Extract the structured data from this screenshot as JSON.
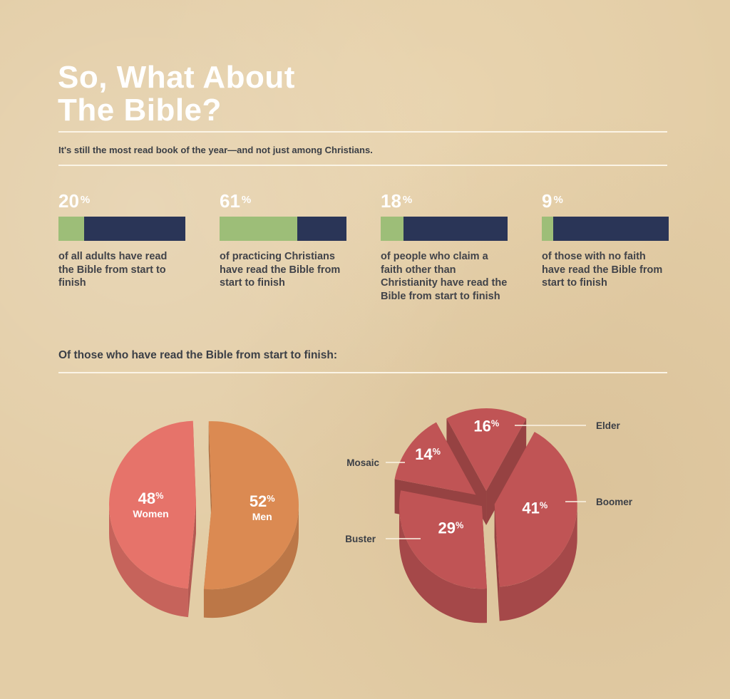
{
  "title": {
    "line1": "So, What About",
    "line2": "The Bible?"
  },
  "subtitle": "It's still the most read book of the year—and not just among Christians.",
  "stats": [
    {
      "value": "20",
      "unit": "%",
      "fraction": 0.2,
      "description": "of all adults have read the Bible from start to finish"
    },
    {
      "value": "61",
      "unit": "%",
      "fraction": 0.61,
      "description": "of practicing Christians have read the Bible from start to finish"
    },
    {
      "value": "18",
      "unit": "%",
      "fraction": 0.18,
      "description": "of people who claim a faith other than Christianity have read the Bible from start to finish"
    },
    {
      "value": "9",
      "unit": "%",
      "fraction": 0.09,
      "description": "of those with no faith have read the Bible from start to finish"
    }
  ],
  "section_heading": "Of those who have read the Bible from start to finish:",
  "colors": {
    "bar_fill": "#9dbe78",
    "bar_track": "#2a3557",
    "men": "#db8a52",
    "women": "#e6736a",
    "generation": "#c05455"
  },
  "chart_data": [
    {
      "type": "pie",
      "categories": [
        "Men",
        "Women"
      ],
      "values": [
        52,
        48
      ],
      "value_labels": [
        "52",
        "48"
      ],
      "unit": "%"
    },
    {
      "type": "pie",
      "categories": [
        "Elder",
        "Boomer",
        "Buster",
        "Mosaic"
      ],
      "values": [
        16,
        41,
        29,
        14
      ],
      "value_labels": [
        "16",
        "41",
        "29",
        "14"
      ],
      "unit": "%"
    }
  ]
}
